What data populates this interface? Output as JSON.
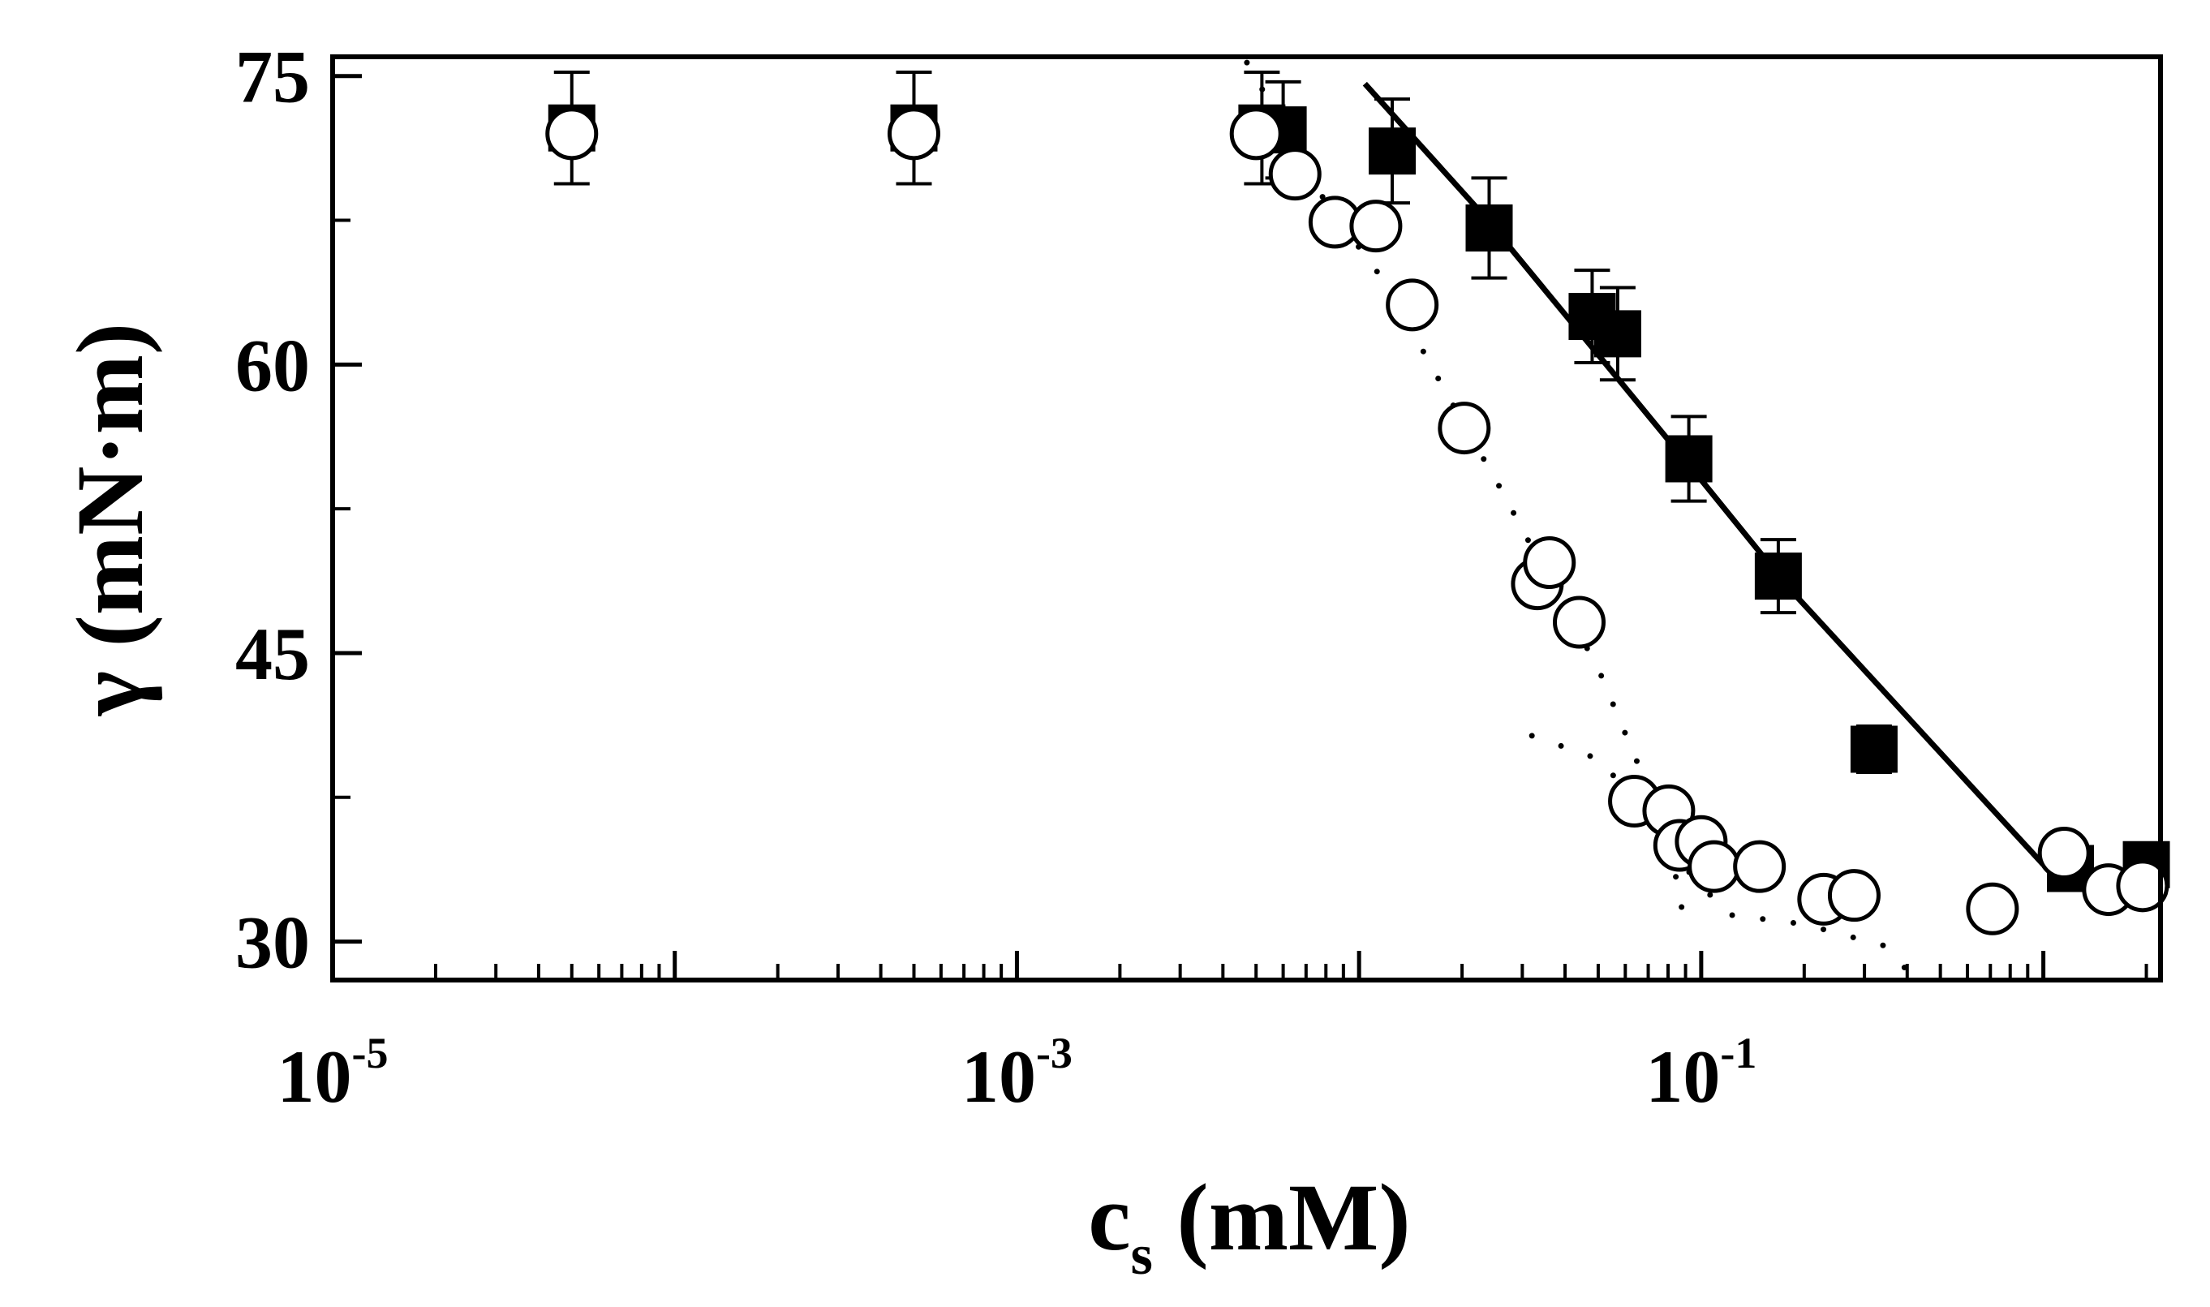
{
  "chart_data": {
    "type": "scatter",
    "x_scale": "log",
    "xlim": [
      1e-05,
      2.2
    ],
    "ylim": [
      28,
      76
    ],
    "x_ticks": [
      {
        "value": 1e-05,
        "base": "10",
        "exp": "-5"
      },
      {
        "value": 0.001,
        "base": "10",
        "exp": "-3"
      },
      {
        "value": 0.1,
        "base": "10",
        "exp": "-1"
      }
    ],
    "y_ticks": [
      {
        "value": 30,
        "label": "30"
      },
      {
        "value": 45,
        "label": "45"
      },
      {
        "value": 60,
        "label": "60"
      },
      {
        "value": 75,
        "label": "75"
      }
    ],
    "y_minor": [
      37.5,
      52.5,
      67.5
    ],
    "xlabel_main": "c",
    "xlabel_sub": "s",
    "xlabel_unit": " (mM)",
    "ylabel": "γ (mN·m)",
    "grid": false,
    "series": [
      {
        "marker": "filled-square",
        "points": [
          {
            "x": 5e-05,
            "y": 72.3,
            "err": 2.9
          },
          {
            "x": 0.0005,
            "y": 72.3,
            "err": 2.9
          },
          {
            "x": 0.0052,
            "y": 72.3,
            "err": 2.9
          },
          {
            "x": 0.006,
            "y": 72.2,
            "err": 2.5
          },
          {
            "x": 0.0125,
            "y": 71.1,
            "err": 2.7
          },
          {
            "x": 0.024,
            "y": 67.1,
            "err": 2.6
          },
          {
            "x": 0.048,
            "y": 62.5,
            "err": 2.4
          },
          {
            "x": 0.057,
            "y": 61.6,
            "err": 2.4
          },
          {
            "x": 0.092,
            "y": 55.1,
            "err": 2.2
          },
          {
            "x": 0.168,
            "y": 49.0,
            "err": 1.9
          },
          {
            "x": 0.32,
            "y": 40.0,
            "err": 1.2
          },
          {
            "x": 1.2,
            "y": 33.8,
            "err": 0
          },
          {
            "x": 2.0,
            "y": 34.0,
            "err": 0
          }
        ]
      },
      {
        "marker": "open-circle",
        "points": [
          {
            "x": 5e-05,
            "y": 72.0
          },
          {
            "x": 0.0005,
            "y": 72.0
          },
          {
            "x": 0.005,
            "y": 72.0
          },
          {
            "x": 0.0065,
            "y": 69.9
          },
          {
            "x": 0.0085,
            "y": 67.4
          },
          {
            "x": 0.0112,
            "y": 67.2
          },
          {
            "x": 0.0143,
            "y": 63.1
          },
          {
            "x": 0.0203,
            "y": 56.7
          },
          {
            "x": 0.0332,
            "y": 48.6
          },
          {
            "x": 0.036,
            "y": 49.7
          },
          {
            "x": 0.044,
            "y": 46.6
          },
          {
            "x": 0.0638,
            "y": 37.3
          },
          {
            "x": 0.0804,
            "y": 36.8
          },
          {
            "x": 0.0865,
            "y": 35.0
          },
          {
            "x": 0.1,
            "y": 35.2
          },
          {
            "x": 0.109,
            "y": 33.9
          },
          {
            "x": 0.148,
            "y": 33.9
          },
          {
            "x": 0.228,
            "y": 32.2
          },
          {
            "x": 0.28,
            "y": 32.4
          },
          {
            "x": 0.71,
            "y": 31.7
          },
          {
            "x": 1.15,
            "y": 34.6
          },
          {
            "x": 1.55,
            "y": 32.7
          },
          {
            "x": 1.95,
            "y": 32.9
          }
        ]
      }
    ],
    "solid_fit": [
      {
        "x": 0.0104,
        "y": 74.6
      },
      {
        "x": 0.023,
        "y": 67.8
      },
      {
        "x": 0.1,
        "y": 54.0
      },
      {
        "x": 0.18,
        "y": 48.4
      },
      {
        "x": 1.0,
        "y": 34.0
      }
    ],
    "dotted_fit": [
      {
        "x": 0.0047,
        "y": 75.7
      },
      {
        "x": 0.006,
        "y": 72.4
      },
      {
        "x": 0.008,
        "y": 68.4
      },
      {
        "x": 0.012,
        "y": 64.2
      },
      {
        "x": 0.018,
        "y": 58.5
      },
      {
        "x": 0.026,
        "y": 53.5
      },
      {
        "x": 0.035,
        "y": 49.2
      },
      {
        "x": 0.05,
        "y": 44.2
      },
      {
        "x": 0.068,
        "y": 38.5
      },
      {
        "x": 0.088,
        "y": 34.0
      },
      {
        "x": 0.12,
        "y": 31.4
      },
      {
        "x": 0.2,
        "y": 30.9
      },
      {
        "x": 0.34,
        "y": 29.8
      },
      {
        "x": 0.4,
        "y": 28.5
      }
    ],
    "dotted_fit_low": [
      {
        "x": 0.032,
        "y": 40.7
      },
      {
        "x": 0.05,
        "y": 39.5
      },
      {
        "x": 0.08,
        "y": 35.5
      },
      {
        "x": 0.09,
        "y": 30.7
      }
    ]
  }
}
